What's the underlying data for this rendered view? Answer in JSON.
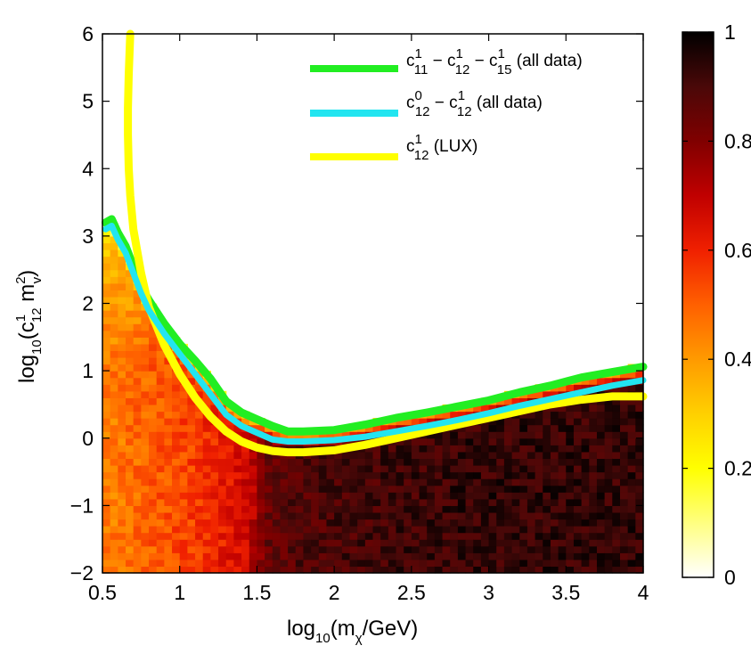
{
  "chart_data": {
    "type": "heatmap",
    "xlabel": "log10(mχ/GeV)",
    "ylabel": "log10(c1_12 m_v^2)",
    "xlim": [
      0.5,
      4
    ],
    "ylim": [
      -2,
      6
    ],
    "xticks": [
      "0.5",
      "1",
      "1.5",
      "2",
      "2.5",
      "3",
      "3.5",
      "4"
    ],
    "yticks": [
      "−2",
      "−1",
      "0",
      "1",
      "2",
      "3",
      "4",
      "5",
      "6"
    ],
    "colorbar": {
      "range": [
        0,
        1
      ],
      "ticks": [
        "0",
        "0.2",
        "0.4",
        "0.6",
        "0.8",
        "1"
      ],
      "colormap": [
        "#ffffff",
        "#ffff80",
        "#ffff00",
        "#ffd000",
        "#ff9a00",
        "#ff6000",
        "#f02000",
        "#c00000",
        "#800000",
        "#4a0808",
        "#000000"
      ]
    },
    "heatmap_profile": {
      "x": [
        0.5,
        0.7,
        0.9,
        1.1,
        1.3,
        1.45,
        1.55,
        1.7,
        2.0,
        2.5,
        3.0,
        3.5,
        4.0
      ],
      "value": [
        0.45,
        0.48,
        0.52,
        0.56,
        0.62,
        0.68,
        0.85,
        0.88,
        0.9,
        0.92,
        0.93,
        0.93,
        0.93
      ]
    },
    "series": [
      {
        "name": "c1_11 − c1_12 − c1_15 (all data)",
        "color": "#22ee22",
        "x": [
          0.52,
          0.56,
          0.6,
          0.65,
          0.7,
          0.75,
          0.8,
          0.9,
          1.0,
          1.1,
          1.2,
          1.3,
          1.4,
          1.5,
          1.6,
          1.7,
          1.8,
          2.0,
          2.2,
          2.4,
          2.6,
          2.8,
          3.0,
          3.2,
          3.4,
          3.6,
          3.8,
          4.0
        ],
        "y": [
          3.2,
          3.25,
          3.05,
          2.85,
          2.55,
          2.25,
          2.05,
          1.7,
          1.4,
          1.15,
          0.88,
          0.55,
          0.38,
          0.28,
          0.18,
          0.1,
          0.1,
          0.12,
          0.2,
          0.3,
          0.38,
          0.47,
          0.56,
          0.68,
          0.78,
          0.9,
          0.98,
          1.06
        ]
      },
      {
        "name": "c0_12 − c1_12 (all data)",
        "color": "#22e5f0",
        "x": [
          0.52,
          0.56,
          0.6,
          0.65,
          0.7,
          0.75,
          0.8,
          0.9,
          1.0,
          1.1,
          1.2,
          1.3,
          1.4,
          1.5,
          1.6,
          1.7,
          1.8,
          2.0,
          2.2,
          2.4,
          2.6,
          2.8,
          3.0,
          3.2,
          3.4,
          3.6,
          3.8,
          4.0
        ],
        "y": [
          3.1,
          3.15,
          2.95,
          2.75,
          2.45,
          2.15,
          1.9,
          1.55,
          1.25,
          0.95,
          0.65,
          0.35,
          0.18,
          0.08,
          -0.02,
          -0.05,
          -0.05,
          -0.03,
          0.02,
          0.1,
          0.18,
          0.27,
          0.37,
          0.48,
          0.58,
          0.68,
          0.78,
          0.86
        ]
      },
      {
        "name": "c1_12 (LUX)",
        "color": "#ffff00",
        "x": [
          0.68,
          0.67,
          0.665,
          0.665,
          0.67,
          0.68,
          0.7,
          0.75,
          0.8,
          0.9,
          1.0,
          1.1,
          1.2,
          1.3,
          1.4,
          1.5,
          1.6,
          1.7,
          1.8,
          2.0,
          2.2,
          2.4,
          2.6,
          2.8,
          3.0,
          3.2,
          3.4,
          3.6,
          3.8,
          4.0
        ],
        "y": [
          6.0,
          5.4,
          4.9,
          4.5,
          4.0,
          3.6,
          3.1,
          2.45,
          1.95,
          1.38,
          0.95,
          0.6,
          0.32,
          0.1,
          -0.05,
          -0.14,
          -0.19,
          -0.21,
          -0.21,
          -0.18,
          -0.1,
          0.0,
          0.1,
          0.2,
          0.3,
          0.4,
          0.5,
          0.57,
          0.62,
          0.62
        ]
      }
    ],
    "legend": {
      "placement": "top-right",
      "entries": [
        {
          "main": "c",
          "sup1": "1",
          "sub1": "11",
          "mid1": " − c",
          "sup2": "1",
          "sub2": "12",
          "mid2": " − c",
          "sup3": "1",
          "sub3": "15",
          "tail": " (all data)"
        },
        {
          "main": "c",
          "sup1": "0",
          "sub1": "12",
          "mid1": " − c",
          "sup2": "1",
          "sub2": "12",
          "tail": " (all data)"
        },
        {
          "main": "c",
          "sup1": "1",
          "sub1": "12",
          "tail": " (LUX)"
        }
      ]
    },
    "axis_text": {
      "xlabel_main": "log",
      "xlabel_sub10": "10",
      "xlabel_paren": "(m",
      "xlabel_chi": "χ",
      "xlabel_tail": "/GeV)",
      "ylabel_main": "log",
      "ylabel_sub10": "10",
      "ylabel_paren": "(c",
      "ylabel_sup": "1",
      "ylabel_sub12": "12",
      "ylabel_m": " m",
      "ylabel_sup2": "2",
      "ylabel_subv": "v",
      "ylabel_tail": ")"
    }
  }
}
